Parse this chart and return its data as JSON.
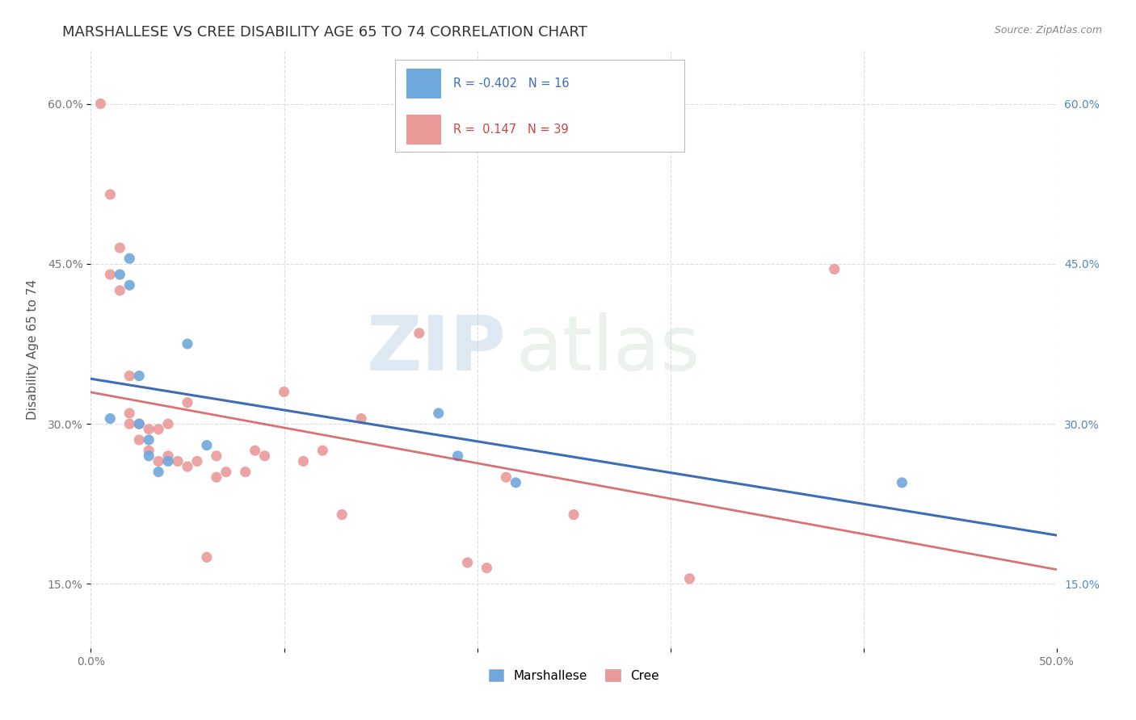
{
  "title": "MARSHALLESE VS CREE DISABILITY AGE 65 TO 74 CORRELATION CHART",
  "source": "Source: ZipAtlas.com",
  "ylabel": "Disability Age 65 to 74",
  "watermark_zip": "ZIP",
  "watermark_atlas": "atlas",
  "xlim": [
    0.0,
    0.5
  ],
  "ylim": [
    0.09,
    0.65
  ],
  "x_ticks": [
    0.0,
    0.1,
    0.2,
    0.3,
    0.4,
    0.5
  ],
  "x_tick_labels": [
    "0.0%",
    "",
    "",
    "",
    "",
    "50.0%"
  ],
  "y_ticks": [
    0.15,
    0.3,
    0.45,
    0.6
  ],
  "y_tick_labels": [
    "15.0%",
    "30.0%",
    "45.0%",
    "60.0%"
  ],
  "legend_blue_R": -0.402,
  "legend_blue_N": 16,
  "legend_pink_R": 0.147,
  "legend_pink_N": 39,
  "blue_color": "#6fa8dc",
  "pink_color": "#ea9999",
  "blue_line_color": "#3d6eb5",
  "pink_line_color": "#cc4444",
  "marshallese_x": [
    0.01,
    0.015,
    0.02,
    0.02,
    0.025,
    0.025,
    0.03,
    0.03,
    0.035,
    0.04,
    0.05,
    0.06,
    0.18,
    0.19,
    0.22,
    0.42
  ],
  "marshallese_y": [
    0.305,
    0.44,
    0.43,
    0.455,
    0.3,
    0.345,
    0.27,
    0.285,
    0.255,
    0.265,
    0.375,
    0.28,
    0.31,
    0.27,
    0.245,
    0.245
  ],
  "cree_x": [
    0.005,
    0.01,
    0.01,
    0.015,
    0.015,
    0.02,
    0.02,
    0.02,
    0.025,
    0.025,
    0.03,
    0.03,
    0.035,
    0.035,
    0.04,
    0.04,
    0.045,
    0.05,
    0.05,
    0.055,
    0.06,
    0.065,
    0.065,
    0.07,
    0.08,
    0.085,
    0.09,
    0.1,
    0.11,
    0.12,
    0.13,
    0.14,
    0.17,
    0.195,
    0.205,
    0.215,
    0.25,
    0.31,
    0.385
  ],
  "cree_y": [
    0.6,
    0.515,
    0.44,
    0.465,
    0.425,
    0.345,
    0.31,
    0.3,
    0.3,
    0.285,
    0.295,
    0.275,
    0.295,
    0.265,
    0.3,
    0.27,
    0.265,
    0.26,
    0.32,
    0.265,
    0.175,
    0.25,
    0.27,
    0.255,
    0.255,
    0.275,
    0.27,
    0.33,
    0.265,
    0.275,
    0.215,
    0.305,
    0.385,
    0.17,
    0.165,
    0.25,
    0.215,
    0.155,
    0.445
  ],
  "grid_color": "#dddddd",
  "background_color": "#ffffff",
  "title_fontsize": 13,
  "axis_label_fontsize": 11,
  "tick_fontsize": 10,
  "legend_fontsize": 11,
  "source_fontsize": 9
}
